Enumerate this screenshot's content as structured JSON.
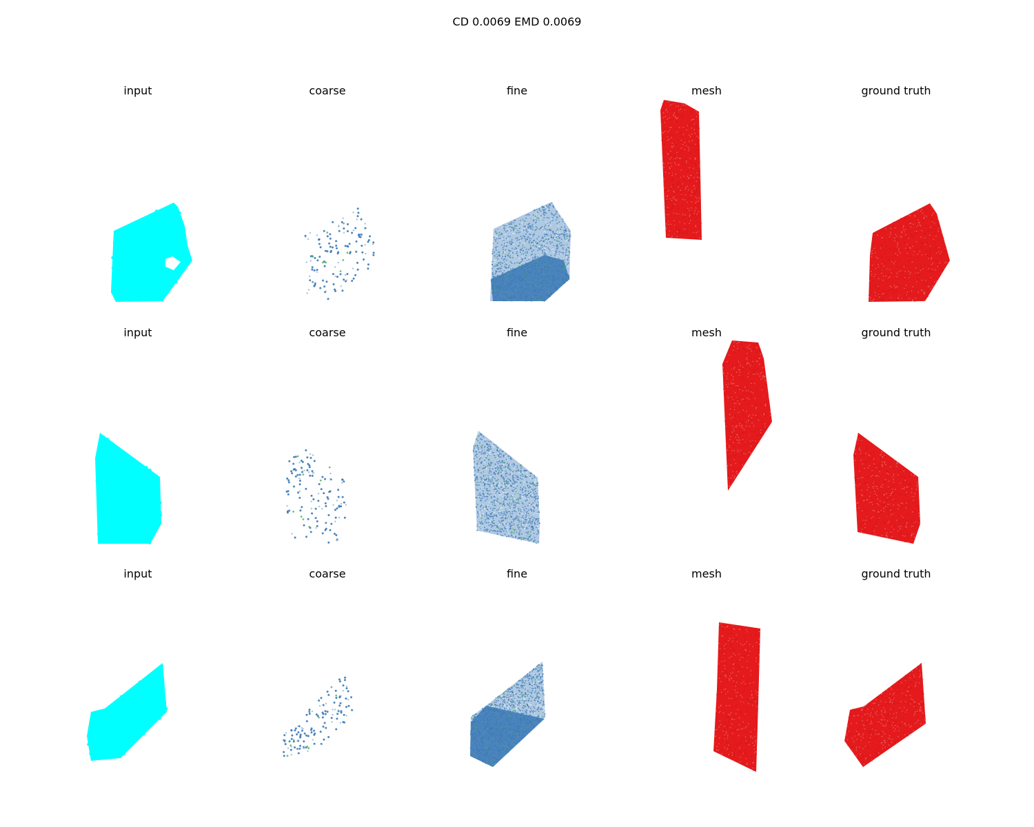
{
  "figure": {
    "suptitle": "CD 0.0069  EMD 0.0069"
  },
  "colors": {
    "input": "#00ffff",
    "coarse": "#3a78b5",
    "fine": "#3a78b5",
    "fine_accent": "#4caf50",
    "mesh": "#e41a1c",
    "ground_truth": "#e41a1c"
  },
  "chart_data": {
    "type": "scatter",
    "kind": "3d point cloud grid (axes hidden)",
    "columns": [
      "input",
      "coarse",
      "fine",
      "mesh",
      "ground truth"
    ],
    "rows": [
      {
        "panels": [
          {
            "title": "input",
            "shape": "slab with hole"
          },
          {
            "title": "coarse",
            "shape": "sparse points"
          },
          {
            "title": "fine",
            "shape": "dense points"
          },
          {
            "title": "mesh",
            "shape": "tall slab"
          },
          {
            "title": "ground truth",
            "shape": "slab"
          }
        ]
      },
      {
        "panels": [
          {
            "title": "input",
            "shape": "slab"
          },
          {
            "title": "coarse",
            "shape": "sparse points"
          },
          {
            "title": "fine",
            "shape": "dense points"
          },
          {
            "title": "mesh",
            "shape": "tall slab"
          },
          {
            "title": "ground truth",
            "shape": "slab"
          }
        ]
      },
      {
        "panels": [
          {
            "title": "input",
            "shape": "tilted slab"
          },
          {
            "title": "coarse",
            "shape": "sparse points"
          },
          {
            "title": "fine",
            "shape": "dense points"
          },
          {
            "title": "mesh",
            "shape": "tall slab"
          },
          {
            "title": "ground truth",
            "shape": "tilted slab"
          }
        ]
      }
    ]
  }
}
